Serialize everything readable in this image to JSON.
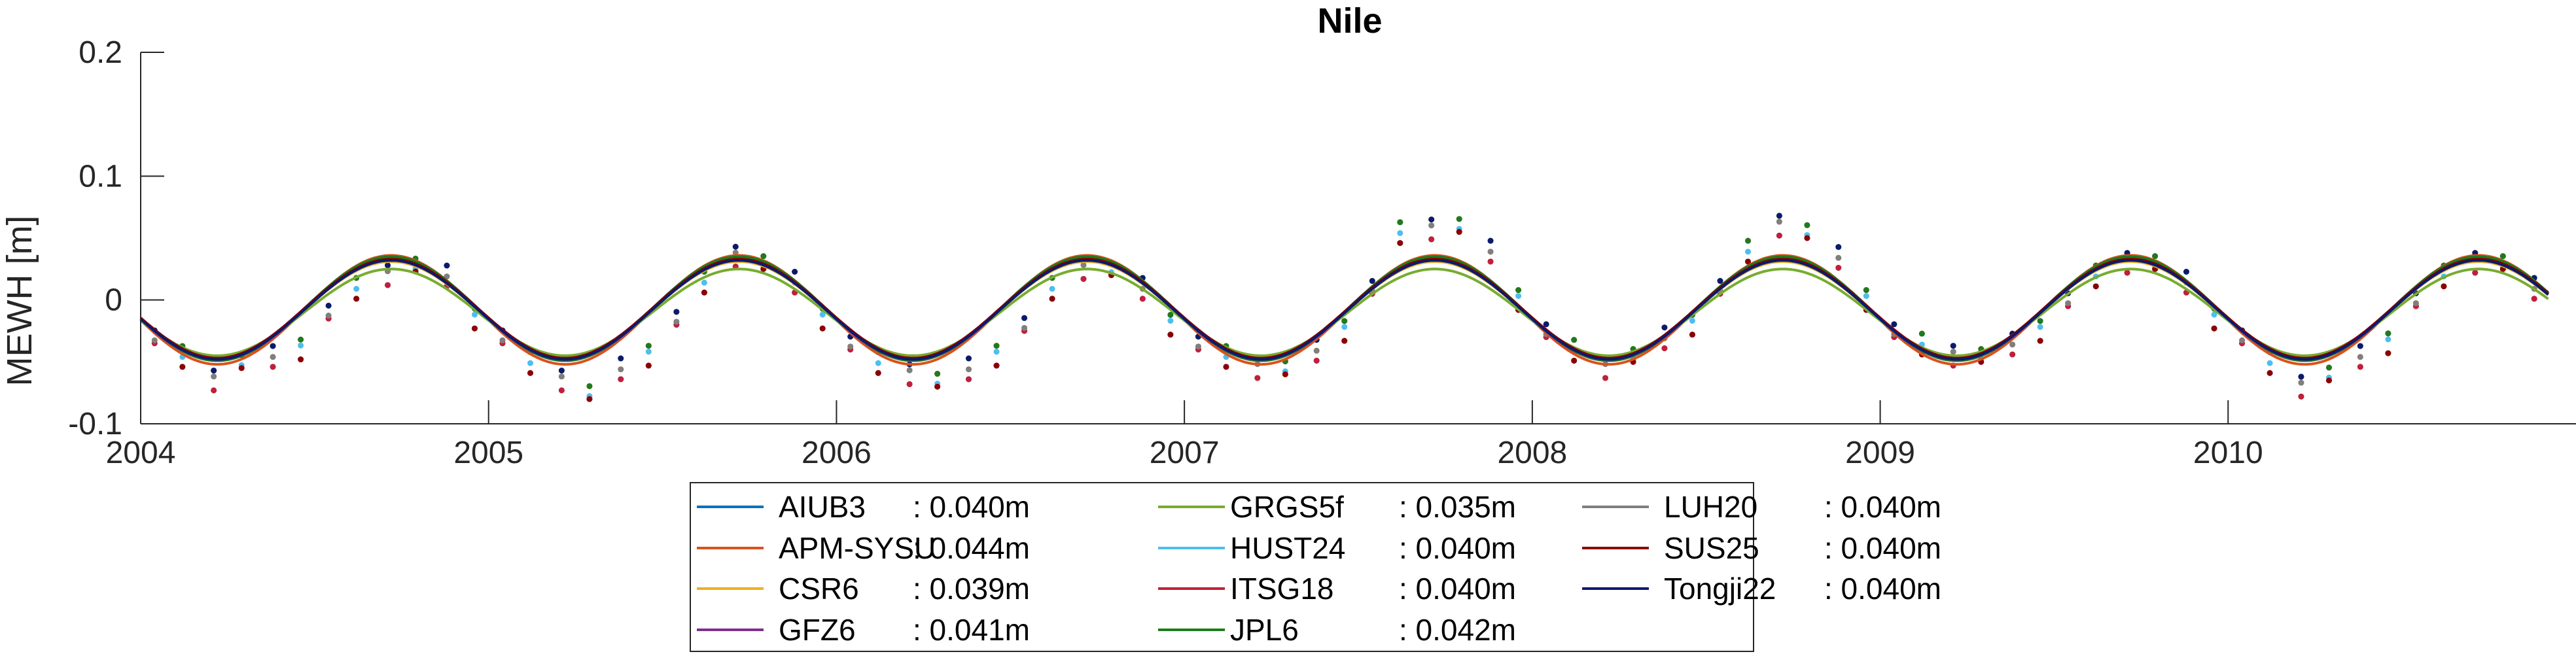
{
  "chart_data": {
    "type": "line",
    "title": "Nile",
    "xlabel": "",
    "ylabel": "MEWH [m]",
    "xlim": [
      2004,
      2011
    ],
    "ylim": [
      -0.1,
      0.2
    ],
    "xticks": [
      "2004",
      "2005",
      "2006",
      "2007",
      "2008",
      "2009",
      "2010"
    ],
    "yticks": [
      "-0.1",
      "0",
      "0.1",
      "0.2"
    ],
    "grid": false,
    "legend_position": "bottom-center",
    "peak_phase": 0.72,
    "series": [
      {
        "name": "AIUB3",
        "value_label": "0.040m",
        "color": "#0072BD",
        "amplitude": 0.04,
        "offset": -0.008
      },
      {
        "name": "APM-SYSU",
        "value_label": "0.044m",
        "color": "#D95319",
        "amplitude": 0.044,
        "offset": -0.008
      },
      {
        "name": "CSR6",
        "value_label": "0.039m",
        "color": "#EDB120",
        "amplitude": 0.039,
        "offset": -0.008
      },
      {
        "name": "GFZ6",
        "value_label": "0.041m",
        "color": "#7E2F8E",
        "amplitude": 0.041,
        "offset": -0.008
      },
      {
        "name": "GRGS5f",
        "value_label": "0.035m",
        "color": "#77AC30",
        "amplitude": 0.035,
        "offset": -0.01
      },
      {
        "name": "HUST24",
        "value_label": "0.040m",
        "color": "#4DBEEE",
        "amplitude": 0.04,
        "offset": -0.008
      },
      {
        "name": "ITSG18",
        "value_label": "0.040m",
        "color": "#C41E3A",
        "amplitude": 0.04,
        "offset": -0.007
      },
      {
        "name": "JPL6",
        "value_label": "0.042m",
        "color": "#1E7B1E",
        "amplitude": 0.042,
        "offset": -0.007
      },
      {
        "name": "LUH20",
        "value_label": "0.040m",
        "color": "#7F7F7F",
        "amplitude": 0.04,
        "offset": -0.008
      },
      {
        "name": "SUS25",
        "value_label": "0.040m",
        "color": "#8B0000",
        "amplitude": 0.04,
        "offset": -0.007
      },
      {
        "name": "Tongji22",
        "value_label": "0.040m",
        "color": "#0B1A6E",
        "amplitude": 0.04,
        "offset": -0.008
      }
    ],
    "scatter_points": [
      [
        2004.04,
        -0.03
      ],
      [
        2004.12,
        -0.045
      ],
      [
        2004.21,
        -0.06
      ],
      [
        2004.29,
        -0.05
      ],
      [
        2004.38,
        -0.045
      ],
      [
        2004.46,
        -0.035
      ],
      [
        2004.54,
        -0.01
      ],
      [
        2004.62,
        0.01
      ],
      [
        2004.71,
        0.025
      ],
      [
        2004.79,
        0.028
      ],
      [
        2004.88,
        0.02
      ],
      [
        2004.96,
        -0.01
      ],
      [
        2005.04,
        -0.03
      ],
      [
        2005.12,
        -0.05
      ],
      [
        2005.21,
        -0.06
      ],
      [
        2005.29,
        -0.075
      ],
      [
        2005.38,
        -0.055
      ],
      [
        2005.46,
        -0.04
      ],
      [
        2005.54,
        -0.015
      ],
      [
        2005.62,
        0.015
      ],
      [
        2005.71,
        0.04
      ],
      [
        2005.79,
        0.03
      ],
      [
        2005.88,
        0.015
      ],
      [
        2005.96,
        -0.01
      ],
      [
        2006.04,
        -0.035
      ],
      [
        2006.12,
        -0.05
      ],
      [
        2006.21,
        -0.055
      ],
      [
        2006.29,
        -0.065
      ],
      [
        2006.38,
        -0.055
      ],
      [
        2006.46,
        -0.04
      ],
      [
        2006.54,
        -0.02
      ],
      [
        2006.62,
        0.01
      ],
      [
        2006.71,
        0.03
      ],
      [
        2006.79,
        0.025
      ],
      [
        2006.88,
        0.01
      ],
      [
        2006.96,
        -0.015
      ],
      [
        2007.04,
        -0.035
      ],
      [
        2007.12,
        -0.045
      ],
      [
        2007.21,
        -0.05
      ],
      [
        2007.29,
        -0.055
      ],
      [
        2007.38,
        -0.04
      ],
      [
        2007.46,
        -0.02
      ],
      [
        2007.54,
        0.01
      ],
      [
        2007.62,
        0.055
      ],
      [
        2007.71,
        0.062
      ],
      [
        2007.79,
        0.06
      ],
      [
        2007.88,
        0.04
      ],
      [
        2007.96,
        0.005
      ],
      [
        2008.04,
        -0.025
      ],
      [
        2008.12,
        -0.04
      ],
      [
        2008.21,
        -0.05
      ],
      [
        2008.29,
        -0.045
      ],
      [
        2008.38,
        -0.03
      ],
      [
        2008.46,
        -0.015
      ],
      [
        2008.54,
        0.01
      ],
      [
        2008.62,
        0.04
      ],
      [
        2008.71,
        0.065
      ],
      [
        2008.79,
        0.055
      ],
      [
        2008.88,
        0.035
      ],
      [
        2008.96,
        0.005
      ],
      [
        2009.04,
        -0.025
      ],
      [
        2009.12,
        -0.035
      ],
      [
        2009.21,
        -0.04
      ],
      [
        2009.29,
        -0.045
      ],
      [
        2009.38,
        -0.035
      ],
      [
        2009.46,
        -0.02
      ],
      [
        2009.54,
        0.0
      ],
      [
        2009.62,
        0.02
      ],
      [
        2009.71,
        0.035
      ],
      [
        2009.79,
        0.03
      ],
      [
        2009.88,
        0.015
      ],
      [
        2009.96,
        -0.01
      ],
      [
        2010.04,
        -0.03
      ],
      [
        2010.12,
        -0.05
      ],
      [
        2010.21,
        -0.065
      ],
      [
        2010.29,
        -0.06
      ],
      [
        2010.38,
        -0.045
      ],
      [
        2010.46,
        -0.03
      ],
      [
        2010.54,
        0.0
      ],
      [
        2010.62,
        0.02
      ],
      [
        2010.71,
        0.035
      ],
      [
        2010.79,
        0.03
      ],
      [
        2010.88,
        0.01
      ]
    ]
  }
}
